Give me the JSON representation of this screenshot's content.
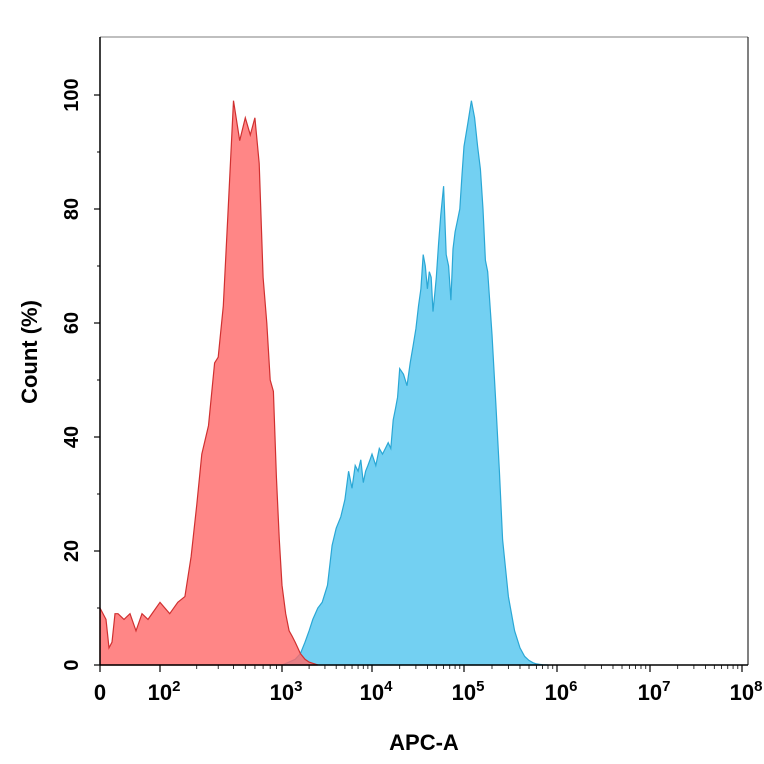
{
  "chart_data": {
    "type": "area",
    "title": "",
    "xlabel": "APC-A",
    "ylabel": "Count (%)",
    "x_scale": "biexponential",
    "xlim": [
      0,
      100000000
    ],
    "ylim": [
      0,
      110
    ],
    "grid": false,
    "y_ticks": [
      {
        "value": 0,
        "label": "0"
      },
      {
        "value": 20,
        "label": "20"
      },
      {
        "value": 40,
        "label": "40"
      },
      {
        "value": 60,
        "label": "60"
      },
      {
        "value": 80,
        "label": "80"
      },
      {
        "value": 100,
        "label": "100"
      }
    ],
    "x_ticks": [
      {
        "value": 0,
        "base": "0",
        "exp": ""
      },
      {
        "value": 100,
        "base": "10",
        "exp": "2"
      },
      {
        "value": 1000,
        "base": "10",
        "exp": "3"
      },
      {
        "value": 10000,
        "base": "10",
        "exp": "4"
      },
      {
        "value": 100000,
        "base": "10",
        "exp": "5"
      },
      {
        "value": 1000000,
        "base": "10",
        "exp": "6"
      },
      {
        "value": 10000000,
        "base": "10",
        "exp": "7"
      },
      {
        "value": 100000000,
        "base": "10",
        "exp": "8"
      }
    ],
    "series": [
      {
        "key": "control",
        "fill": "#ff6b6b",
        "stroke": "#d03030",
        "x": [
          0,
          10,
          15,
          20,
          25,
          30,
          40,
          50,
          60,
          70,
          80,
          100,
          120,
          140,
          160,
          180,
          200,
          220,
          250,
          280,
          300,
          330,
          360,
          400,
          450,
          500,
          550,
          600,
          650,
          700,
          750,
          800,
          850,
          900,
          950,
          1000,
          1100,
          1200,
          1300,
          1400,
          1500,
          1600,
          1800,
          2000,
          2200,
          2500
        ],
        "values": [
          10,
          8,
          3,
          4,
          9,
          9,
          8,
          9,
          6,
          9,
          8,
          11,
          9,
          11,
          12,
          19,
          28,
          37,
          42,
          53,
          54,
          63,
          79,
          99,
          92,
          96,
          93,
          96,
          88,
          68,
          60,
          50,
          48,
          33,
          22,
          14,
          9,
          6,
          5,
          4,
          3,
          2,
          1,
          0.5,
          0.3,
          0
        ]
      },
      {
        "key": "target",
        "fill": "#5bc8f0",
        "stroke": "#2aa7d5",
        "x": [
          1000,
          1200,
          1400,
          1600,
          1800,
          2000,
          2200,
          2500,
          2800,
          3200,
          3600,
          4000,
          4500,
          5000,
          5500,
          6000,
          6500,
          7000,
          7500,
          8000,
          8500,
          9000,
          9500,
          10000,
          11000,
          12000,
          13000,
          14000,
          15000,
          16000,
          17000,
          18000,
          19000,
          20000,
          22000,
          24000,
          26000,
          28000,
          30000,
          32000,
          34000,
          36000,
          38000,
          40000,
          42000,
          44000,
          46000,
          48000,
          50000,
          53000,
          56000,
          60000,
          64000,
          68000,
          72000,
          76000,
          80000,
          85000,
          90000,
          95000,
          100000,
          110000,
          120000,
          130000,
          140000,
          150000,
          160000,
          170000,
          180000,
          200000,
          220000,
          240000,
          260000,
          300000,
          350000,
          400000,
          450000,
          500000,
          550000,
          600000,
          650000,
          700000,
          800000
        ],
        "values": [
          0,
          0.5,
          1,
          2,
          4,
          6,
          8,
          10,
          11,
          14,
          21,
          24,
          26,
          29,
          34,
          31,
          35,
          34,
          36,
          32,
          34,
          35,
          36,
          37,
          35,
          38,
          37,
          38,
          39,
          38,
          43,
          45,
          47,
          52,
          51,
          49,
          53,
          56,
          59,
          63,
          66,
          72,
          70,
          66,
          69,
          68,
          62,
          65,
          68,
          74,
          79,
          84,
          72,
          70,
          64,
          73,
          76,
          78,
          80,
          86,
          91,
          95,
          99,
          96,
          91,
          87,
          80,
          71,
          69,
          58,
          46,
          34,
          22,
          12,
          6,
          3,
          1.5,
          0.8,
          0.4,
          0.2,
          0.1,
          0.05,
          0
        ]
      }
    ]
  }
}
